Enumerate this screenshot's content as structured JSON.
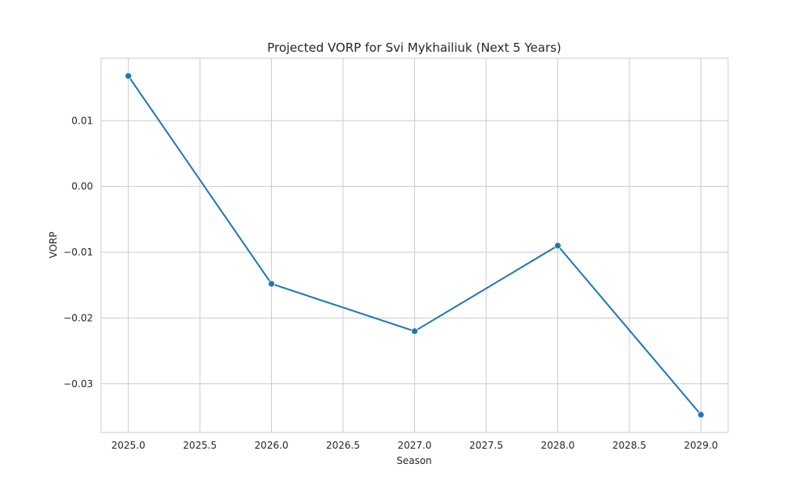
{
  "chart_data": {
    "type": "line",
    "title": "Projected VORP for Svi Mykhailiuk (Next 5 Years)",
    "xlabel": "Season",
    "ylabel": "VORP",
    "x": [
      2025,
      2026,
      2027,
      2028,
      2029
    ],
    "series": [
      {
        "values": [
          0.0168,
          -0.0148,
          -0.022,
          -0.009,
          -0.0347
        ]
      }
    ],
    "xlim": [
      2024.81,
      2029.19
    ],
    "ylim": [
      -0.0374,
      0.0195
    ],
    "xticks": [
      2025.0,
      2025.5,
      2026.0,
      2026.5,
      2027.0,
      2027.5,
      2028.0,
      2028.5,
      2029.0
    ],
    "xtick_labels": [
      "2025.0",
      "2025.5",
      "2026.0",
      "2026.5",
      "2027.0",
      "2027.5",
      "2028.0",
      "2028.5",
      "2029.0"
    ],
    "yticks": [
      -0.03,
      -0.02,
      -0.01,
      0.0,
      0.01
    ],
    "ytick_labels": [
      "−0.03",
      "−0.02",
      "−0.01",
      "0.00",
      "0.01"
    ],
    "grid": true,
    "line_color": "#1f77b4",
    "grid_color": "#cccccc"
  }
}
